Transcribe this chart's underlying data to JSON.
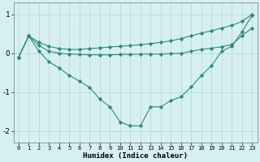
{
  "x": [
    0,
    1,
    2,
    3,
    4,
    5,
    6,
    7,
    8,
    9,
    10,
    11,
    12,
    13,
    14,
    15,
    16,
    17,
    18,
    19,
    20,
    21,
    22,
    23
  ],
  "line1": [
    -0.1,
    0.45,
    0.28,
    0.18,
    0.12,
    0.1,
    0.1,
    0.12,
    0.14,
    0.16,
    0.18,
    0.2,
    0.22,
    0.25,
    0.28,
    0.32,
    0.38,
    0.45,
    0.52,
    0.58,
    0.65,
    0.72,
    0.82,
    1.0
  ],
  "line2": [
    -0.1,
    0.45,
    0.2,
    0.05,
    0.0,
    -0.02,
    -0.03,
    -0.04,
    -0.04,
    -0.04,
    -0.03,
    -0.03,
    -0.02,
    -0.02,
    -0.02,
    -0.01,
    0.0,
    0.05,
    0.1,
    0.13,
    0.17,
    0.22,
    0.45,
    0.65
  ],
  "line3": [
    -0.1,
    0.45,
    0.05,
    -0.22,
    -0.38,
    -0.57,
    -0.72,
    -0.88,
    -1.18,
    -1.38,
    -1.77,
    -1.87,
    -1.87,
    -1.38,
    -1.38,
    -1.22,
    -1.12,
    -0.87,
    -0.57,
    -0.32,
    0.05,
    0.18,
    0.55,
    0.97
  ],
  "color": "#2e8b73",
  "bg_color": "#d6f0f0",
  "xlabel": "Humidex (Indice chaleur)",
  "ylim": [
    -2.3,
    1.3
  ],
  "xlim": [
    -0.5,
    23.5
  ],
  "yticks": [
    -2,
    -1,
    0,
    1
  ],
  "xticks": [
    0,
    1,
    2,
    3,
    4,
    5,
    6,
    7,
    8,
    9,
    10,
    11,
    12,
    13,
    14,
    15,
    16,
    17,
    18,
    19,
    20,
    21,
    22,
    23
  ],
  "grid_color": "#b8dada",
  "marker": "D",
  "markersize": 2.2,
  "linewidth": 0.8,
  "tick_fontsize": 5.0,
  "xlabel_fontsize": 6.5
}
